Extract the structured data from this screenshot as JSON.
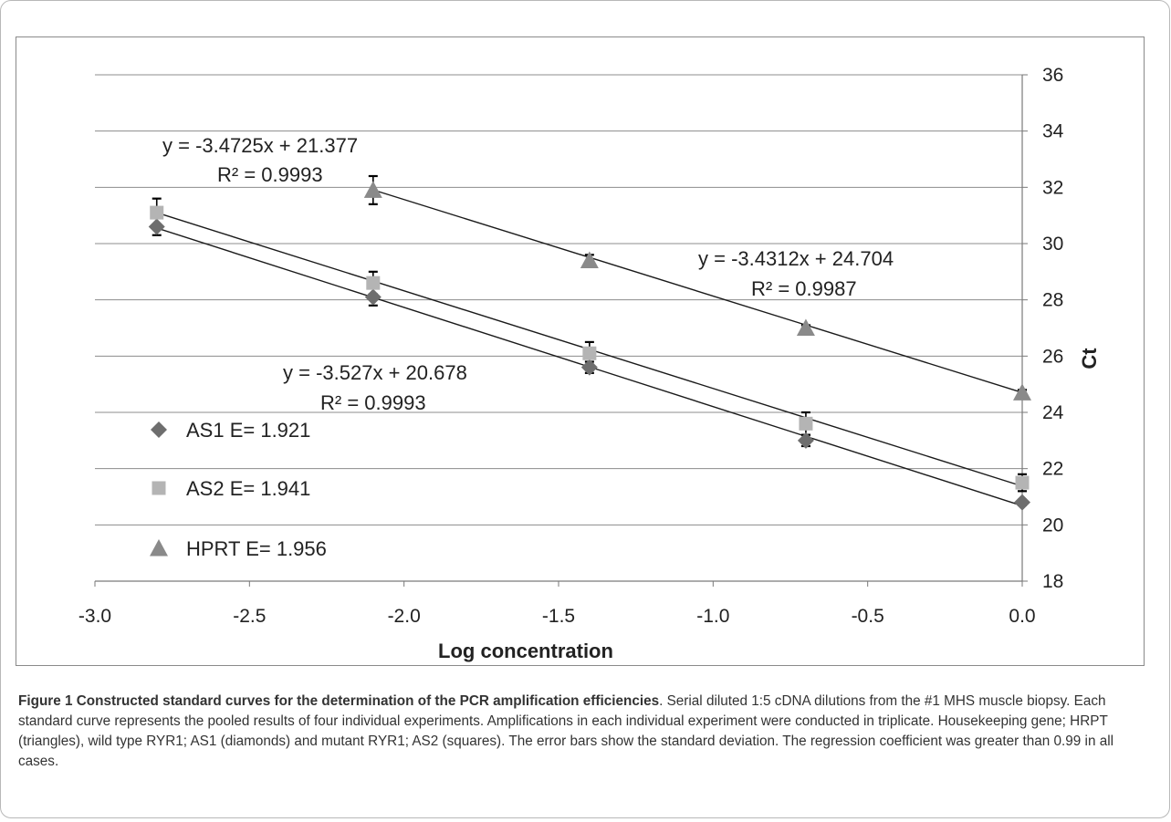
{
  "caption": {
    "title": "Figure 1 Constructed standard curves for the determination of the PCR amplification efficiencies",
    "text": ". Serial diluted 1:5 cDNA dilutions from the #1 MHS muscle biopsy. Each standard curve represents the pooled results of four individual experiments. Amplifications in each individual experiment were conducted in triplicate. Housekeeping gene; HRPT (triangles), wild type RYR1; AS1 (diamonds) and mutant RYR1; AS2 (squares). The error bars show the standard deviation. The regression coefficient was greater than 0.99 in all cases."
  },
  "chart_data": {
    "type": "scatter",
    "xlabel": "Log concentration",
    "ylabel": "Ct",
    "xlim": [
      -3.0,
      0.0
    ],
    "ylim": [
      18,
      36
    ],
    "x_ticks": [
      "-3.0",
      "-2.5",
      "-2.0",
      "-1.5",
      "-1.0",
      "-0.5",
      "0.0"
    ],
    "y_ticks": [
      "18",
      "20",
      "22",
      "24",
      "26",
      "28",
      "30",
      "32",
      "34",
      "36"
    ],
    "grid": "horizontal",
    "y_axis_position": "right",
    "legend_position": "bottom-left",
    "series": [
      {
        "name": "AS1 E= 1.921",
        "marker": "diamond",
        "color": "#6e6e6e",
        "x": [
          -2.8,
          -2.1,
          -1.4,
          -0.7,
          0.0
        ],
        "y": [
          30.6,
          28.1,
          25.6,
          23.0,
          20.8
        ],
        "error": [
          0.3,
          0.3,
          0.2,
          0.2,
          0.1
        ],
        "fit": {
          "slope": -3.527,
          "intercept": 20.678
        },
        "equation": "y = -3.527x + 20.678",
        "r2": "R² = 0.9993"
      },
      {
        "name": "AS2 E= 1.941",
        "marker": "square",
        "color": "#b4b4b4",
        "x": [
          -2.8,
          -2.1,
          -1.4,
          -0.7,
          0.0
        ],
        "y": [
          31.1,
          28.6,
          26.1,
          23.6,
          21.5
        ],
        "error": [
          0.5,
          0.4,
          0.4,
          0.4,
          0.3
        ],
        "fit": {
          "slope": -3.4725,
          "intercept": 21.377
        },
        "equation": "y = -3.4725x + 21.377",
        "r2": "R² = 0.9993"
      },
      {
        "name": "HPRT E= 1.956",
        "marker": "triangle",
        "color": "#8a8a8a",
        "x": [
          -2.1,
          -1.4,
          -0.7,
          0.0
        ],
        "y": [
          31.9,
          29.4,
          27.0,
          24.7
        ],
        "error": [
          0.5,
          0.2,
          0.1,
          0.1
        ],
        "fit": {
          "slope": -3.4312,
          "intercept": 24.704
        },
        "equation": "y = -3.4312x + 24.704",
        "r2": "R² = 0.9987"
      }
    ]
  }
}
